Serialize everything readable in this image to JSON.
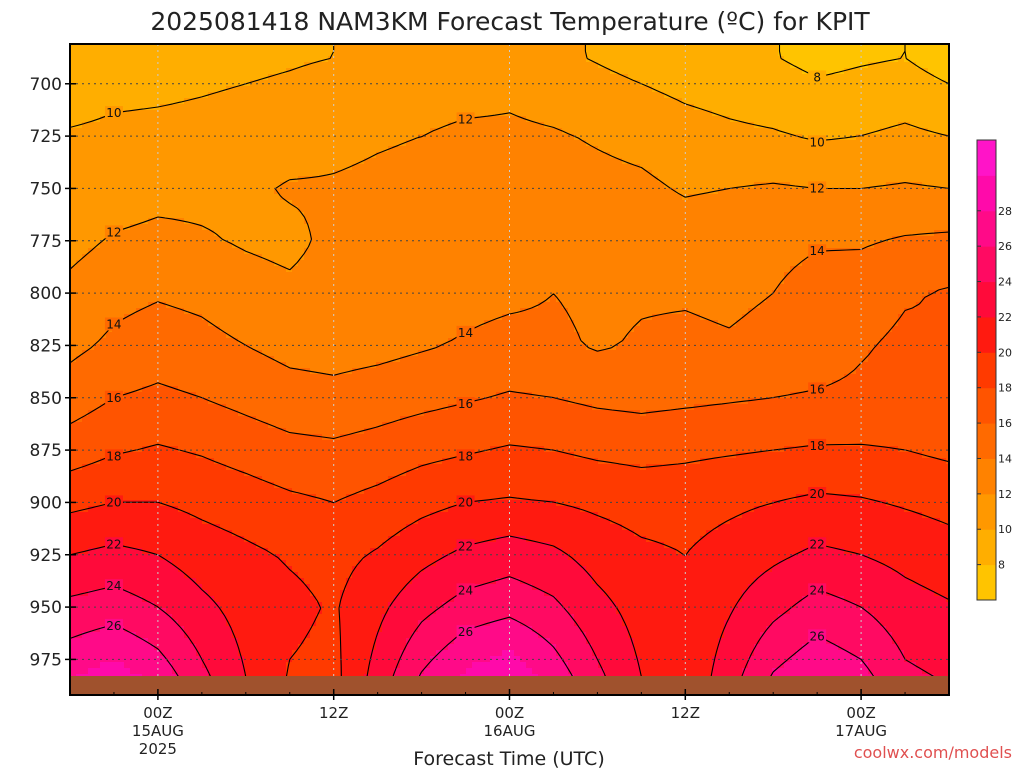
{
  "chart_data": {
    "type": "heatmap",
    "title": "2025081418 NAM3KM Forecast Temperature (ºC) for KPIT",
    "xlabel": "Forecast Time (UTC)",
    "ylabel": "",
    "credit": "coolwx.com/models",
    "y_axis": {
      "ticks": [
        700,
        725,
        750,
        775,
        800,
        825,
        850,
        875,
        900,
        925,
        950,
        975
      ],
      "tick_labels": [
        "700",
        "725",
        "750",
        "775",
        "800",
        "825",
        "850",
        "875",
        "900",
        "925",
        "950",
        "975"
      ],
      "range": [
        681,
        992
      ],
      "inverted": true
    },
    "x_axis": {
      "range_hours_utc": [
        18,
        78
      ],
      "ticks": [
        {
          "hour": 24,
          "lines": [
            "00Z",
            "15AUG",
            "2025"
          ]
        },
        {
          "hour": 36,
          "lines": [
            "12Z",
            "",
            ""
          ]
        },
        {
          "hour": 48,
          "lines": [
            "00Z",
            "16AUG",
            ""
          ]
        },
        {
          "hour": 60,
          "lines": [
            "12Z",
            "",
            ""
          ]
        },
        {
          "hour": 72,
          "lines": [
            "00Z",
            "17AUG",
            ""
          ]
        }
      ]
    },
    "grid": true,
    "colorbar": {
      "levels": [
        6,
        8,
        10,
        12,
        14,
        16,
        18,
        20,
        22,
        24,
        26,
        28,
        30
      ],
      "labels": [
        "8",
        "10",
        "12",
        "14",
        "16",
        "18",
        "20",
        "22",
        "24",
        "26",
        "28"
      ],
      "colors": [
        "#FFC400",
        "#FFAE00",
        "#FF9800",
        "#FF8200",
        "#FF6A00",
        "#FF5400",
        "#FF3A00",
        "#FF1A10",
        "#FF0A3A",
        "#FF0A62",
        "#FF0A88",
        "#FF0AAA",
        "#FF14C8"
      ]
    },
    "ground_color": "#A0522D",
    "column_profiles_hours": [
      18,
      21,
      24,
      27,
      30,
      33,
      36,
      39,
      42,
      45,
      48,
      51,
      54,
      57,
      60,
      63,
      66,
      69,
      72,
      75,
      78
    ],
    "pressure_levels": [
      700,
      725,
      750,
      775,
      800,
      825,
      850,
      875,
      900,
      925,
      950,
      975
    ],
    "temperature_c": [
      [
        9.0,
        10.2,
        11.0,
        11.4,
        12.5,
        13.5,
        15.0,
        17.0,
        19.5,
        22.0,
        24.5,
        27.0
      ],
      [
        9.5,
        10.4,
        11.0,
        12.2,
        13.4,
        14.4,
        16.0,
        17.8,
        20.0,
        22.5,
        25.0,
        28.0
      ],
      [
        9.6,
        10.5,
        11.4,
        12.5,
        13.8,
        15.0,
        16.4,
        18.2,
        20.0,
        22.0,
        24.0,
        26.5
      ],
      [
        9.8,
        10.6,
        11.5,
        12.2,
        13.5,
        14.6,
        16.0,
        17.8,
        19.5,
        21.0,
        22.5,
        24.0
      ],
      [
        10.0,
        10.8,
        11.6,
        11.8,
        12.8,
        14.0,
        15.4,
        17.2,
        19.0,
        20.4,
        21.2,
        21.8
      ],
      [
        10.2,
        11.0,
        12.2,
        11.5,
        12.4,
        13.4,
        14.8,
        16.6,
        18.4,
        19.8,
        20.5,
        20.0
      ],
      [
        10.5,
        11.5,
        12.2,
        12.5,
        12.8,
        13.2,
        14.6,
        16.4,
        18.0,
        19.4,
        19.8,
        19.5
      ],
      [
        10.8,
        11.8,
        12.4,
        12.8,
        13.0,
        13.4,
        15.0,
        16.8,
        18.6,
        20.2,
        21.5,
        22.5
      ],
      [
        11.0,
        12.0,
        12.6,
        13.0,
        13.2,
        13.8,
        15.4,
        17.4,
        19.4,
        21.4,
        23.4,
        25.5
      ],
      [
        11.2,
        12.4,
        12.8,
        13.2,
        13.4,
        14.2,
        15.8,
        17.8,
        20.0,
        22.4,
        24.8,
        27.5
      ],
      [
        11.5,
        12.4,
        13.0,
        13.4,
        13.6,
        14.6,
        16.2,
        18.2,
        20.2,
        23.0,
        25.4,
        28.5
      ],
      [
        11.0,
        12.2,
        12.8,
        13.4,
        14.0,
        14.4,
        16.0,
        18.0,
        20.0,
        22.4,
        24.4,
        26.5
      ],
      [
        10.5,
        11.8,
        12.6,
        13.2,
        13.6,
        13.8,
        15.6,
        17.6,
        19.6,
        21.2,
        22.6,
        24.0
      ],
      [
        10.0,
        11.4,
        12.4,
        13.0,
        13.8,
        14.2,
        15.4,
        17.4,
        19.2,
        20.4,
        21.2,
        21.8
      ],
      [
        9.5,
        10.8,
        11.8,
        13.0,
        13.8,
        14.4,
        15.6,
        17.6,
        19.2,
        20.0,
        20.4,
        20.4
      ],
      [
        9.2,
        10.4,
        12.0,
        13.2,
        13.6,
        14.2,
        15.8,
        17.8,
        19.6,
        20.8,
        21.8,
        22.8
      ],
      [
        8.8,
        10.2,
        12.2,
        13.4,
        14.0,
        14.6,
        16.0,
        18.0,
        20.0,
        21.6,
        23.4,
        25.5
      ],
      [
        8.2,
        9.8,
        12.0,
        13.8,
        14.8,
        15.0,
        16.2,
        18.2,
        20.4,
        22.4,
        24.8,
        27.0
      ],
      [
        8.5,
        10.0,
        12.0,
        13.8,
        15.0,
        15.8,
        16.4,
        18.2,
        20.2,
        22.0,
        24.0,
        26.0
      ],
      [
        8.8,
        10.4,
        12.2,
        14.2,
        15.8,
        16.4,
        16.6,
        18.0,
        19.8,
        21.4,
        22.8,
        24.0
      ],
      [
        8.0,
        10.0,
        12.0,
        14.4,
        16.2,
        16.0,
        16.2,
        17.6,
        19.4,
        20.8,
        22.2,
        23.4
      ]
    ],
    "contour_levels": [
      8,
      10,
      12,
      14,
      16,
      18,
      20,
      22,
      24,
      26
    ]
  }
}
